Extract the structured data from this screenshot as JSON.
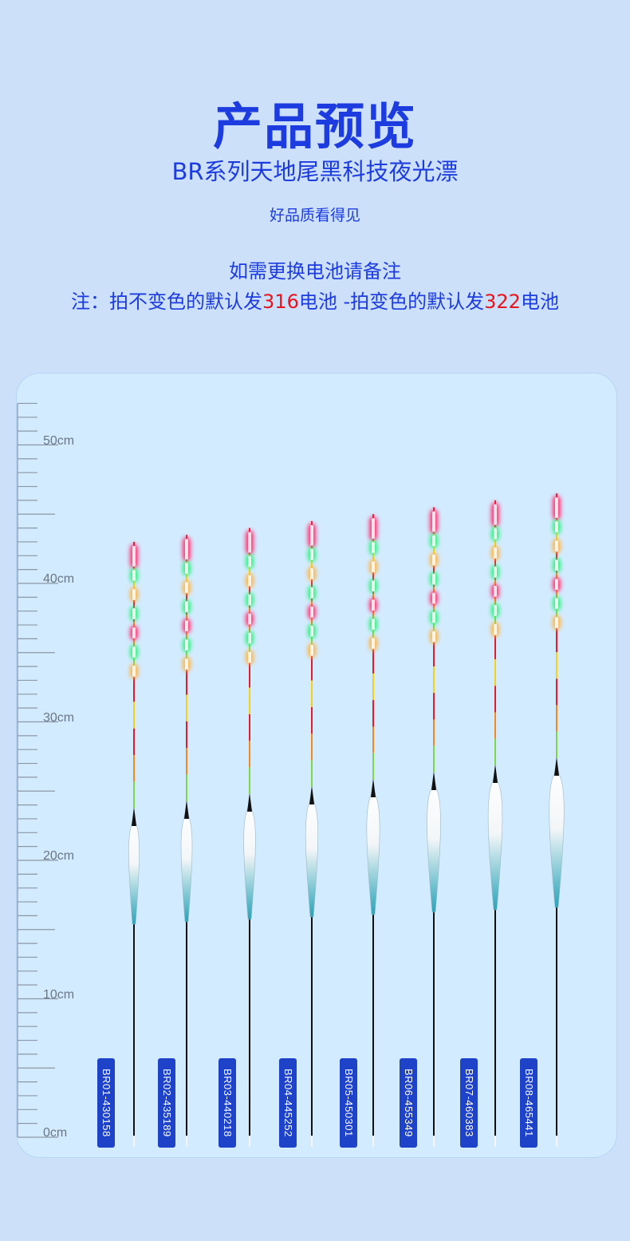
{
  "header": {
    "title": "产品预览",
    "subtitle": "BR系列天地尾黑科技夜光漂",
    "tagline": "好品质看得见",
    "note_line1": "如需更换电池请备注",
    "note_line2_part1": "注：拍不变色的默认发",
    "note_battery_a": "316",
    "note_line2_part2": "电池 -拍变色的默认发",
    "note_battery_b": "322",
    "note_line2_part3": "电池"
  },
  "ruler": {
    "unit": "cm",
    "labels": [
      "50cm",
      "40cm",
      "30cm",
      "20cm",
      "10cm",
      "0cm"
    ]
  },
  "floats": [
    {
      "model": "BR01-430158",
      "length_cm": 43.0
    },
    {
      "model": "BR02-435189",
      "length_cm": 43.5
    },
    {
      "model": "BR03-440218",
      "length_cm": 44.0
    },
    {
      "model": "BR04-445252",
      "length_cm": 44.5
    },
    {
      "model": "BR05-450301",
      "length_cm": 45.0
    },
    {
      "model": "BR06-455349",
      "length_cm": 45.5
    },
    {
      "model": "BR07-460383",
      "length_cm": 46.0
    },
    {
      "model": "BR08-465441",
      "length_cm": 46.5
    }
  ],
  "colors": {
    "brand_blue": "#1d3ce0",
    "accent_red": "#e8141c",
    "background": "#cde0f9",
    "panel": "#d3ebff",
    "light_red": "#ff2a6a",
    "light_green": "#2cf07a",
    "light_orange": "#ffb23c"
  }
}
